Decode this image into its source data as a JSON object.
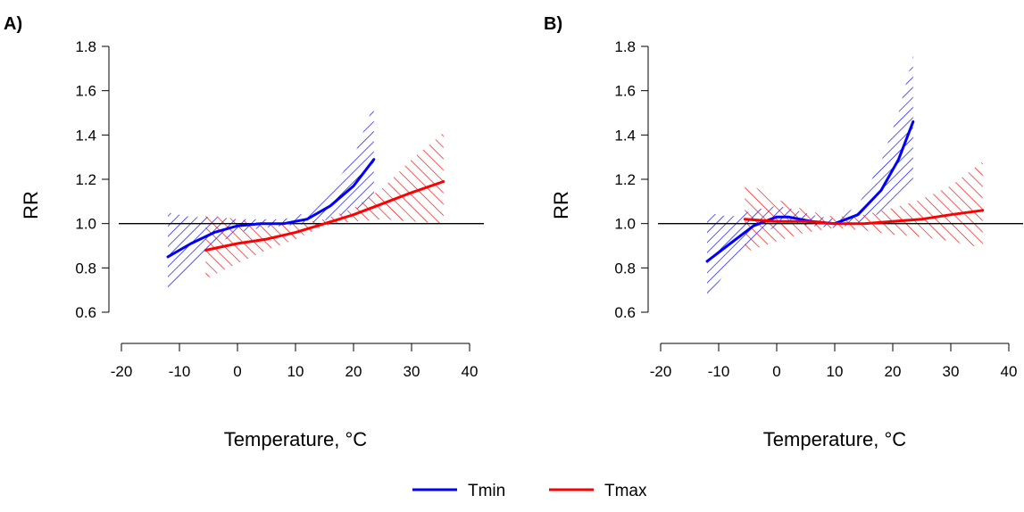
{
  "colors": {
    "tmin": "#0000ff",
    "tmax": "#ff0000",
    "reference": "#000000"
  },
  "legend": [
    {
      "name": "Tmin",
      "color": "#0000ff"
    },
    {
      "name": "Tmax",
      "color": "#ff0000"
    }
  ],
  "chart_data": [
    {
      "type": "line",
      "panel_label": "A)",
      "xlabel": "Temperature, °C",
      "ylabel": "RR",
      "xlim": [
        -20,
        40
      ],
      "ylim": [
        0.6,
        1.8
      ],
      "xticks": [
        "-20",
        "-10",
        "0",
        "10",
        "20",
        "30",
        "40"
      ],
      "yticks": [
        "0.6",
        "0.8",
        "1.0",
        "1.2",
        "1.4",
        "1.6",
        "1.8"
      ],
      "reference_line_y": 1.0,
      "series": [
        {
          "name": "Tmin",
          "color": "#0000ff",
          "x": [
            -12,
            -8,
            -4,
            0,
            4,
            8,
            12,
            16,
            20,
            23.5
          ],
          "y": [
            0.85,
            0.91,
            0.96,
            0.99,
            1.0,
            1.0,
            1.02,
            1.08,
            1.17,
            1.29
          ],
          "lower": [
            0.7,
            0.81,
            0.9,
            0.96,
            0.98,
            0.99,
            1.0,
            1.02,
            1.06,
            1.1
          ],
          "upper": [
            1.05,
            1.03,
            1.03,
            1.02,
            1.02,
            1.02,
            1.05,
            1.15,
            1.3,
            1.54
          ]
        },
        {
          "name": "Tmax",
          "color": "#ff0000",
          "x": [
            -5.5,
            0,
            5,
            10,
            15,
            20,
            25,
            30,
            35.5
          ],
          "y": [
            0.88,
            0.91,
            0.93,
            0.96,
            1.0,
            1.04,
            1.09,
            1.14,
            1.19
          ],
          "lower": [
            0.75,
            0.82,
            0.88,
            0.93,
            0.99,
            1.01,
            1.02,
            1.01,
            1.0
          ],
          "upper": [
            1.04,
            1.02,
            1.0,
            1.0,
            1.02,
            1.07,
            1.16,
            1.29,
            1.41
          ]
        }
      ]
    },
    {
      "type": "line",
      "panel_label": "B)",
      "xlabel": "Temperature, °C",
      "ylabel": "RR",
      "xlim": [
        -20,
        40
      ],
      "ylim": [
        0.6,
        1.8
      ],
      "xticks": [
        "-20",
        "-10",
        "0",
        "10",
        "20",
        "30",
        "40"
      ],
      "yticks": [
        "0.6",
        "0.8",
        "1.0",
        "1.2",
        "1.4",
        "1.6",
        "1.8"
      ],
      "reference_line_y": 1.0,
      "series": [
        {
          "name": "Tmin",
          "color": "#0000ff",
          "x": [
            -12,
            -8,
            -4,
            0,
            2,
            6,
            10,
            14,
            18,
            21,
            23.5
          ],
          "y": [
            0.83,
            0.91,
            0.99,
            1.03,
            1.03,
            1.01,
            1.0,
            1.04,
            1.15,
            1.29,
            1.46
          ],
          "lower": [
            0.66,
            0.81,
            0.93,
            0.99,
            1.0,
            0.99,
            0.98,
            1.0,
            1.05,
            1.12,
            1.19
          ],
          "upper": [
            1.05,
            1.03,
            1.06,
            1.08,
            1.07,
            1.04,
            1.02,
            1.08,
            1.28,
            1.5,
            1.76
          ]
        },
        {
          "name": "Tmax",
          "color": "#ff0000",
          "x": [
            -5.5,
            0,
            5,
            10,
            15,
            20,
            25,
            30,
            35.5
          ],
          "y": [
            1.02,
            1.01,
            1.01,
            1.0,
            1.0,
            1.01,
            1.02,
            1.04,
            1.06
          ],
          "lower": [
            0.87,
            0.92,
            0.96,
            0.98,
            0.97,
            0.95,
            0.94,
            0.92,
            0.89
          ],
          "upper": [
            1.19,
            1.11,
            1.06,
            1.03,
            1.04,
            1.07,
            1.11,
            1.17,
            1.28
          ]
        }
      ]
    }
  ]
}
